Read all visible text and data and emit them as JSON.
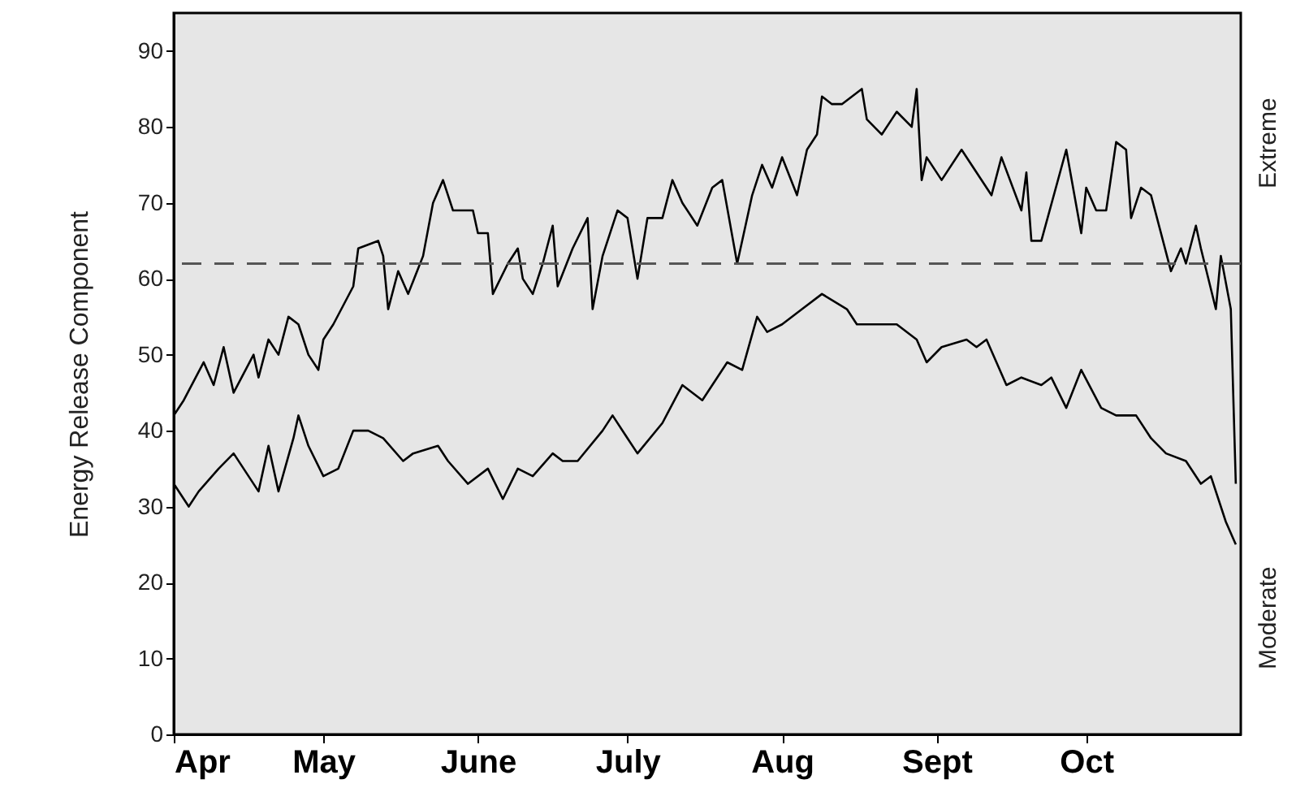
{
  "chart_data": {
    "type": "line",
    "ylabel": "Energy Release Component",
    "annotations": [
      "Extreme",
      "Moderate"
    ],
    "xlim": [
      "--04-01",
      "--11-01"
    ],
    "xticks": [
      {
        "value": "--04-01",
        "label": "Apr"
      },
      {
        "value": "--05-01",
        "label": "May"
      },
      {
        "value": "--06-01",
        "label": "June"
      },
      {
        "value": "--07-01",
        "label": "July"
      },
      {
        "value": "--08-01",
        "label": "Aug"
      },
      {
        "value": "--09-01",
        "label": "Sept"
      },
      {
        "value": "--10-01",
        "label": "Oct"
      }
    ],
    "ylim": [
      0,
      95
    ],
    "yticks": [
      0,
      10,
      20,
      30,
      40,
      50,
      60,
      70,
      80,
      90
    ],
    "ref_lines": [
      {
        "axis": "y",
        "value": 62,
        "color": "#555555",
        "line_style": "dashed"
      }
    ],
    "series": [
      {
        "color": "#000000",
        "x": [
          "--04-01",
          "--04-03",
          "--04-07",
          "--04-09",
          "--04-11",
          "--04-13",
          "--04-17",
          "--04-18",
          "--04-20",
          "--04-22",
          "--04-24",
          "--04-26",
          "--04-28",
          "--04-30",
          "--05-01",
          "--05-03",
          "--05-07",
          "--05-08",
          "--05-12",
          "--05-13",
          "--05-14",
          "--05-16",
          "--05-18",
          "--05-21",
          "--05-23",
          "--05-25",
          "--05-27",
          "--05-31",
          "--06-01",
          "--06-03",
          "--06-04",
          "--06-07",
          "--06-09",
          "--06-10",
          "--06-12",
          "--06-14",
          "--06-16",
          "--06-17",
          "--06-20",
          "--06-23",
          "--06-24",
          "--06-26",
          "--06-29",
          "--07-01",
          "--07-03",
          "--07-05",
          "--07-08",
          "--07-10",
          "--07-12",
          "--07-15",
          "--07-18",
          "--07-20",
          "--07-23",
          "--07-26",
          "--07-28",
          "--07-30",
          "--08-01",
          "--08-04",
          "--08-06",
          "--08-08",
          "--08-09",
          "--08-11",
          "--08-13",
          "--08-17",
          "--08-18",
          "--08-21",
          "--08-23",
          "--08-24",
          "--08-27",
          "--08-28",
          "--08-29",
          "--08-30",
          "--09-02",
          "--09-06",
          "--09-09",
          "--09-12",
          "--09-14",
          "--09-18",
          "--09-19",
          "--09-20",
          "--09-22",
          "--09-27",
          "--09-30",
          "--10-01",
          "--10-03",
          "--10-05",
          "--10-07",
          "--10-09",
          "--10-10",
          "--10-12",
          "--10-14",
          "--10-18",
          "--10-20",
          "--10-21",
          "--10-23",
          "--10-24",
          "--10-27",
          "--10-28",
          "--10-30",
          "--10-31"
        ],
        "values": [
          42,
          44,
          49,
          46,
          51,
          45,
          50,
          47,
          52,
          50,
          55,
          54,
          50,
          48,
          52,
          54,
          59,
          64,
          65,
          63,
          56,
          61,
          58,
          63,
          70,
          73,
          69,
          69,
          66,
          66,
          58,
          62,
          64,
          60,
          58,
          62,
          67,
          59,
          64,
          68,
          56,
          63,
          69,
          68,
          60,
          68,
          68,
          73,
          70,
          67,
          72,
          73,
          62,
          71,
          75,
          72,
          76,
          71,
          77,
          79,
          84,
          83,
          83,
          85,
          81,
          79,
          81,
          82,
          80,
          85,
          73,
          76,
          73,
          77,
          74,
          71,
          76,
          69,
          74,
          65,
          65,
          77,
          66,
          72,
          69,
          69,
          78,
          77,
          68,
          72,
          71,
          61,
          64,
          62,
          67,
          64,
          56,
          63,
          56,
          33
        ]
      },
      {
        "color": "#000000",
        "x": [
          "--04-01",
          "--04-04",
          "--04-06",
          "--04-10",
          "--04-13",
          "--04-18",
          "--04-20",
          "--04-22",
          "--04-25",
          "--04-26",
          "--04-28",
          "--05-01",
          "--05-04",
          "--05-07",
          "--05-10",
          "--05-13",
          "--05-17",
          "--05-19",
          "--05-24",
          "--05-26",
          "--05-30",
          "--06-03",
          "--06-06",
          "--06-09",
          "--06-12",
          "--06-16",
          "--06-18",
          "--06-21",
          "--06-26",
          "--06-28",
          "--07-01",
          "--07-03",
          "--07-08",
          "--07-12",
          "--07-16",
          "--07-21",
          "--07-24",
          "--07-27",
          "--07-29",
          "--08-01",
          "--08-05",
          "--08-09",
          "--08-14",
          "--08-16",
          "--08-20",
          "--08-24",
          "--08-28",
          "--08-30",
          "--09-02",
          "--09-07",
          "--09-09",
          "--09-11",
          "--09-15",
          "--09-18",
          "--09-22",
          "--09-24",
          "--09-27",
          "--09-30",
          "--10-04",
          "--10-07",
          "--10-11",
          "--10-14",
          "--10-17",
          "--10-21",
          "--10-24",
          "--10-26",
          "--10-29",
          "--10-31"
        ],
        "values": [
          33,
          30,
          32,
          35,
          37,
          32,
          38,
          32,
          39,
          42,
          38,
          34,
          35,
          40,
          40,
          39,
          36,
          37,
          38,
          36,
          33,
          35,
          31,
          35,
          34,
          37,
          36,
          36,
          40,
          42,
          39,
          37,
          41,
          46,
          44,
          49,
          48,
          55,
          53,
          54,
          56,
          58,
          56,
          54,
          54,
          54,
          52,
          49,
          51,
          52,
          51,
          52,
          46,
          47,
          46,
          47,
          43,
          48,
          43,
          42,
          42,
          39,
          37,
          36,
          33,
          34,
          28,
          25
        ]
      }
    ]
  }
}
